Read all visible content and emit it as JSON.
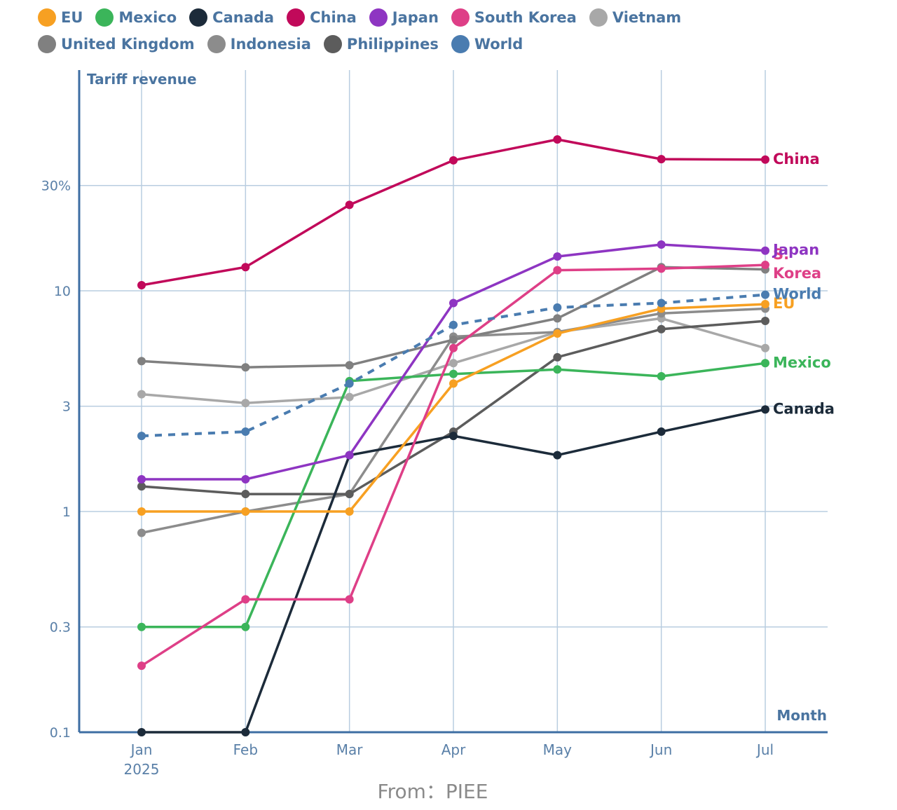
{
  "source_note": "From：PIEE",
  "chart_data": {
    "type": "line",
    "ylabel": "Tariff revenue",
    "xlabel": "Month",
    "y_scale": "log",
    "ylim": [
      0.1,
      80
    ],
    "y_ticks": [
      {
        "value": 0.1,
        "label": "0.1"
      },
      {
        "value": 0.3,
        "label": "0.3"
      },
      {
        "value": 1,
        "label": "1"
      },
      {
        "value": 3,
        "label": "3"
      },
      {
        "value": 10,
        "label": "10"
      },
      {
        "value": 30,
        "label": "30%"
      }
    ],
    "x_ticks": [
      "Jan\n2025",
      "Feb",
      "Mar",
      "Apr",
      "May",
      "Jun",
      "Jul"
    ],
    "grid": true,
    "legend_position": "top",
    "legend": [
      {
        "name": "EU",
        "color": "#F7A022"
      },
      {
        "name": "Mexico",
        "color": "#3BB55A"
      },
      {
        "name": "Canada",
        "color": "#1C2B3A"
      },
      {
        "name": "China",
        "color": "#C1095A"
      },
      {
        "name": "Japan",
        "color": "#8E35C2"
      },
      {
        "name": "South Korea",
        "color": "#DE3F87"
      },
      {
        "name": "Vietnam",
        "color": "#A8A8A8"
      },
      {
        "name": "United Kingdom",
        "color": "#808080"
      },
      {
        "name": "Indonesia",
        "color": "#8C8C8C"
      },
      {
        "name": "Philippines",
        "color": "#5C5C5C"
      },
      {
        "name": "World",
        "color": "#4A7CB0"
      }
    ],
    "series": [
      {
        "name": "Vietnam",
        "color": "#A8A8A8",
        "values": [
          3.4,
          3.1,
          3.3,
          4.7,
          6.5,
          7.5,
          5.5
        ],
        "end_label": ""
      },
      {
        "name": "Indonesia",
        "color": "#8C8C8C",
        "values": [
          0.8,
          1.0,
          1.2,
          6.2,
          6.5,
          7.9,
          8.3
        ],
        "end_label": ""
      },
      {
        "name": "United Kingdom",
        "color": "#808080",
        "values": [
          4.8,
          4.5,
          4.6,
          6.0,
          7.5,
          12.8,
          12.5
        ],
        "end_label": ""
      },
      {
        "name": "Philippines",
        "color": "#5C5C5C",
        "values": [
          1.3,
          1.2,
          1.2,
          2.3,
          5.0,
          6.7,
          7.3
        ],
        "end_label": ""
      },
      {
        "name": "Canada",
        "color": "#1C2B3A",
        "values": [
          0.1,
          0.1,
          1.8,
          2.2,
          1.8,
          2.3,
          2.9
        ],
        "end_label": "Canada"
      },
      {
        "name": "Mexico",
        "color": "#3BB55A",
        "values": [
          0.3,
          0.3,
          3.9,
          4.2,
          4.4,
          4.1,
          4.7
        ],
        "end_label": "Mexico"
      },
      {
        "name": "EU",
        "color": "#F7A022",
        "values": [
          1.0,
          1.0,
          1.0,
          3.8,
          6.4,
          8.3,
          8.7
        ],
        "end_label": "EU"
      },
      {
        "name": "South Korea",
        "color": "#DE3F87",
        "values": [
          0.2,
          0.4,
          0.4,
          5.5,
          12.4,
          12.6,
          13.1
        ],
        "end_label": "S.\nKorea"
      },
      {
        "name": "Japan",
        "color": "#8E35C2",
        "values": [
          1.4,
          1.4,
          1.8,
          8.8,
          14.3,
          16.2,
          15.2
        ],
        "end_label": "Japan"
      },
      {
        "name": "World",
        "color": "#4A7CB0",
        "dashed": true,
        "values": [
          2.2,
          2.3,
          3.8,
          7.0,
          8.4,
          8.8,
          9.6
        ],
        "end_label": "World"
      },
      {
        "name": "China",
        "color": "#C1095A",
        "values": [
          10.6,
          12.8,
          24.5,
          39.0,
          48.5,
          39.5,
          39.3
        ],
        "end_label": "China"
      }
    ]
  }
}
